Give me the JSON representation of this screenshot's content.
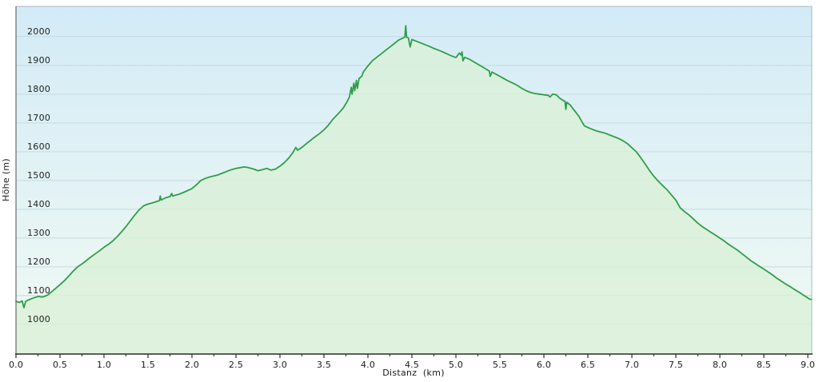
{
  "chart_data": {
    "type": "area",
    "title": "",
    "xlabel": "Distanz  (km)",
    "ylabel": "Höhe (m)",
    "x_unit": "km",
    "y_unit": "m",
    "xlim": [
      0,
      9.045
    ],
    "ylim": [
      897,
      2105
    ],
    "x_major_tick_step": 0.5,
    "x_minor_tick_step": 0.25,
    "x_major_ticks": [
      0.0,
      0.5,
      1.0,
      1.5,
      2.0,
      2.5,
      3.0,
      3.5,
      4.0,
      4.5,
      5.0,
      5.5,
      6.0,
      6.5,
      7.0,
      7.5,
      8.0,
      8.5,
      9.0
    ],
    "y_gridlines": [
      1000,
      1100,
      1200,
      1300,
      1400,
      1500,
      1600,
      1700,
      1800,
      1900,
      2000
    ],
    "grid": true,
    "legend_position": "none",
    "colors": {
      "line": "#2f9e4a",
      "area_fill": "#dbf0d8",
      "area_opacity": 0.82,
      "bg_top": "#d3ebf7",
      "bg_bottom": "#f1faf3",
      "gridline": "#c4dae0",
      "axis_dark": "#2b2b2b",
      "border_left": "#6b6b6b",
      "border_light": "#a9b8be",
      "text": "#1a1a1a"
    },
    "points": [
      [
        0.0,
        1080
      ],
      [
        0.04,
        1076
      ],
      [
        0.07,
        1082
      ],
      [
        0.09,
        1058
      ],
      [
        0.11,
        1080
      ],
      [
        0.15,
        1086
      ],
      [
        0.2,
        1092
      ],
      [
        0.25,
        1097
      ],
      [
        0.3,
        1095
      ],
      [
        0.33,
        1098
      ],
      [
        0.36,
        1102
      ],
      [
        0.4,
        1112
      ],
      [
        0.45,
        1125
      ],
      [
        0.5,
        1138
      ],
      [
        0.55,
        1152
      ],
      [
        0.6,
        1168
      ],
      [
        0.65,
        1185
      ],
      [
        0.7,
        1200
      ],
      [
        0.75,
        1210
      ],
      [
        0.8,
        1222
      ],
      [
        0.85,
        1234
      ],
      [
        0.9,
        1245
      ],
      [
        0.95,
        1256
      ],
      [
        1.0,
        1268
      ],
      [
        1.05,
        1278
      ],
      [
        1.1,
        1290
      ],
      [
        1.15,
        1305
      ],
      [
        1.2,
        1322
      ],
      [
        1.25,
        1340
      ],
      [
        1.3,
        1360
      ],
      [
        1.35,
        1380
      ],
      [
        1.4,
        1398
      ],
      [
        1.45,
        1412
      ],
      [
        1.5,
        1418
      ],
      [
        1.55,
        1422
      ],
      [
        1.6,
        1427
      ],
      [
        1.63,
        1430
      ],
      [
        1.64,
        1446
      ],
      [
        1.65,
        1432
      ],
      [
        1.7,
        1440
      ],
      [
        1.75,
        1444
      ],
      [
        1.77,
        1455
      ],
      [
        1.78,
        1446
      ],
      [
        1.8,
        1448
      ],
      [
        1.85,
        1452
      ],
      [
        1.9,
        1458
      ],
      [
        1.95,
        1465
      ],
      [
        2.0,
        1472
      ],
      [
        2.05,
        1485
      ],
      [
        2.1,
        1500
      ],
      [
        2.15,
        1507
      ],
      [
        2.2,
        1512
      ],
      [
        2.25,
        1516
      ],
      [
        2.3,
        1520
      ],
      [
        2.35,
        1526
      ],
      [
        2.4,
        1532
      ],
      [
        2.45,
        1538
      ],
      [
        2.5,
        1542
      ],
      [
        2.55,
        1545
      ],
      [
        2.6,
        1547
      ],
      [
        2.65,
        1544
      ],
      [
        2.7,
        1540
      ],
      [
        2.75,
        1534
      ],
      [
        2.8,
        1538
      ],
      [
        2.85,
        1542
      ],
      [
        2.9,
        1536
      ],
      [
        2.95,
        1540
      ],
      [
        3.0,
        1550
      ],
      [
        3.05,
        1562
      ],
      [
        3.1,
        1578
      ],
      [
        3.15,
        1598
      ],
      [
        3.18,
        1615
      ],
      [
        3.2,
        1605
      ],
      [
        3.25,
        1615
      ],
      [
        3.3,
        1628
      ],
      [
        3.35,
        1640
      ],
      [
        3.4,
        1652
      ],
      [
        3.45,
        1663
      ],
      [
        3.5,
        1676
      ],
      [
        3.55,
        1692
      ],
      [
        3.6,
        1712
      ],
      [
        3.65,
        1728
      ],
      [
        3.68,
        1738
      ],
      [
        3.72,
        1752
      ],
      [
        3.76,
        1772
      ],
      [
        3.79,
        1790
      ],
      [
        3.81,
        1824
      ],
      [
        3.82,
        1800
      ],
      [
        3.84,
        1838
      ],
      [
        3.85,
        1812
      ],
      [
        3.87,
        1848
      ],
      [
        3.88,
        1820
      ],
      [
        3.9,
        1855
      ],
      [
        3.93,
        1862
      ],
      [
        3.95,
        1878
      ],
      [
        4.0,
        1898
      ],
      [
        4.05,
        1916
      ],
      [
        4.1,
        1928
      ],
      [
        4.15,
        1940
      ],
      [
        4.2,
        1952
      ],
      [
        4.25,
        1964
      ],
      [
        4.3,
        1976
      ],
      [
        4.35,
        1988
      ],
      [
        4.4,
        1995
      ],
      [
        4.42,
        1998
      ],
      [
        4.43,
        2038
      ],
      [
        4.44,
        1998
      ],
      [
        4.46,
        1995
      ],
      [
        4.48,
        1964
      ],
      [
        4.5,
        1990
      ],
      [
        4.55,
        1984
      ],
      [
        4.6,
        1978
      ],
      [
        4.65,
        1972
      ],
      [
        4.7,
        1966
      ],
      [
        4.75,
        1959
      ],
      [
        4.8,
        1953
      ],
      [
        4.85,
        1947
      ],
      [
        4.9,
        1940
      ],
      [
        4.95,
        1933
      ],
      [
        5.0,
        1927
      ],
      [
        5.04,
        1943
      ],
      [
        5.06,
        1936
      ],
      [
        5.07,
        1947
      ],
      [
        5.08,
        1916
      ],
      [
        5.1,
        1928
      ],
      [
        5.15,
        1922
      ],
      [
        5.2,
        1913
      ],
      [
        5.25,
        1904
      ],
      [
        5.3,
        1895
      ],
      [
        5.35,
        1886
      ],
      [
        5.38,
        1880
      ],
      [
        5.39,
        1862
      ],
      [
        5.41,
        1877
      ],
      [
        5.45,
        1870
      ],
      [
        5.5,
        1862
      ],
      [
        5.55,
        1853
      ],
      [
        5.6,
        1845
      ],
      [
        5.65,
        1838
      ],
      [
        5.7,
        1830
      ],
      [
        5.75,
        1820
      ],
      [
        5.8,
        1812
      ],
      [
        5.85,
        1806
      ],
      [
        5.9,
        1802
      ],
      [
        5.95,
        1800
      ],
      [
        6.0,
        1798
      ],
      [
        6.05,
        1796
      ],
      [
        6.07,
        1790
      ],
      [
        6.1,
        1800
      ],
      [
        6.14,
        1798
      ],
      [
        6.18,
        1786
      ],
      [
        6.22,
        1778
      ],
      [
        6.24,
        1775
      ],
      [
        6.25,
        1747
      ],
      [
        6.26,
        1772
      ],
      [
        6.3,
        1762
      ],
      [
        6.35,
        1742
      ],
      [
        6.4,
        1722
      ],
      [
        6.44,
        1700
      ],
      [
        6.46,
        1690
      ],
      [
        6.5,
        1684
      ],
      [
        6.55,
        1678
      ],
      [
        6.6,
        1672
      ],
      [
        6.65,
        1668
      ],
      [
        6.7,
        1664
      ],
      [
        6.75,
        1658
      ],
      [
        6.8,
        1652
      ],
      [
        6.85,
        1646
      ],
      [
        6.9,
        1638
      ],
      [
        6.95,
        1628
      ],
      [
        7.0,
        1614
      ],
      [
        7.05,
        1600
      ],
      [
        7.1,
        1580
      ],
      [
        7.15,
        1558
      ],
      [
        7.2,
        1535
      ],
      [
        7.25,
        1515
      ],
      [
        7.3,
        1498
      ],
      [
        7.35,
        1482
      ],
      [
        7.4,
        1468
      ],
      [
        7.45,
        1450
      ],
      [
        7.5,
        1432
      ],
      [
        7.55,
        1405
      ],
      [
        7.6,
        1392
      ],
      [
        7.65,
        1380
      ],
      [
        7.7,
        1366
      ],
      [
        7.75,
        1352
      ],
      [
        7.8,
        1340
      ],
      [
        7.85,
        1330
      ],
      [
        7.9,
        1320
      ],
      [
        7.95,
        1310
      ],
      [
        8.0,
        1300
      ],
      [
        8.05,
        1290
      ],
      [
        8.1,
        1278
      ],
      [
        8.15,
        1268
      ],
      [
        8.2,
        1258
      ],
      [
        8.25,
        1246
      ],
      [
        8.3,
        1234
      ],
      [
        8.35,
        1222
      ],
      [
        8.4,
        1212
      ],
      [
        8.45,
        1202
      ],
      [
        8.5,
        1192
      ],
      [
        8.55,
        1182
      ],
      [
        8.6,
        1172
      ],
      [
        8.65,
        1160
      ],
      [
        8.7,
        1150
      ],
      [
        8.75,
        1140
      ],
      [
        8.8,
        1131
      ],
      [
        8.85,
        1121
      ],
      [
        8.9,
        1112
      ],
      [
        8.95,
        1102
      ],
      [
        9.0,
        1092
      ],
      [
        9.02,
        1088
      ],
      [
        9.045,
        1086
      ]
    ]
  }
}
